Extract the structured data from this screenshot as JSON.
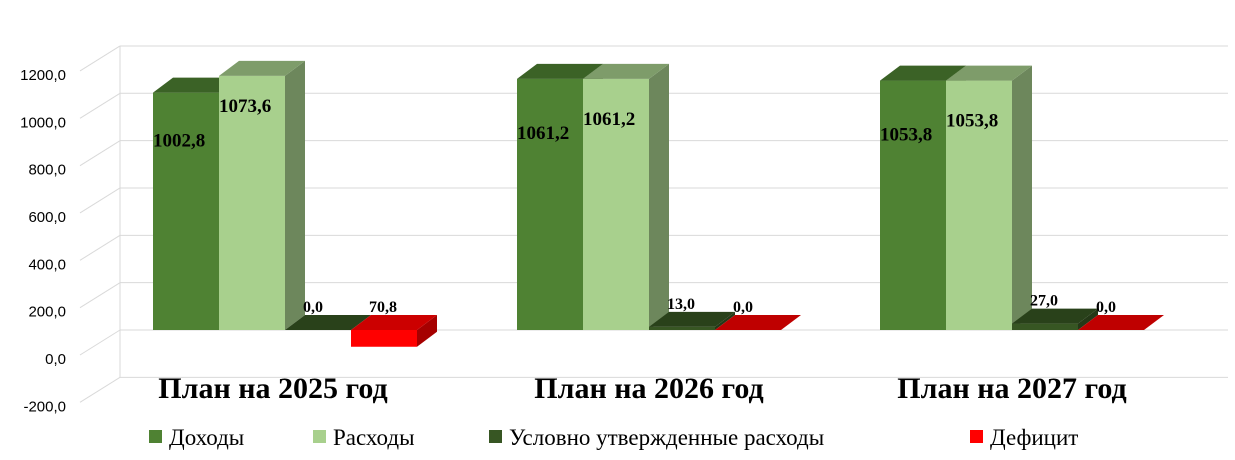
{
  "chart_data": {
    "type": "bar",
    "categories": [
      "План на  2025 год",
      "План на 2026 год",
      "План на 2027 год"
    ],
    "series": [
      {
        "name": "Доходы",
        "values": [
          1002.8,
          1061.2,
          1053.8
        ],
        "labels": [
          "1002,8",
          "1061,2",
          "1053,8"
        ],
        "color": "#4f8233"
      },
      {
        "name": "Расходы",
        "values": [
          1073.6,
          1061.2,
          1053.8
        ],
        "labels": [
          "1073,6",
          "1061,2",
          "1053,8"
        ],
        "color": "#a8d08d"
      },
      {
        "name": "Условно утвержденные расходы",
        "values": [
          0.0,
          13.0,
          27.0
        ],
        "labels": [
          "0,0",
          "13,0",
          "27,0"
        ],
        "color": "#375623"
      },
      {
        "name": "Дефицит",
        "values": [
          -70.8,
          0.0,
          0.0
        ],
        "labels": [
          "70,8",
          "0,0",
          "0,0"
        ],
        "color": "#ff0000"
      }
    ],
    "ylim": [
      -200,
      1200
    ],
    "yticks": [
      -200,
      0,
      200,
      400,
      600,
      800,
      1000,
      1200
    ],
    "ytick_labels": [
      "-200,0",
      "0,0",
      "200,0",
      "400,0",
      "600,0",
      "800,0",
      "1000,0",
      "1200,0"
    ],
    "grid": true,
    "legend": "bottom",
    "title": "",
    "xlabel": "",
    "ylabel": ""
  }
}
